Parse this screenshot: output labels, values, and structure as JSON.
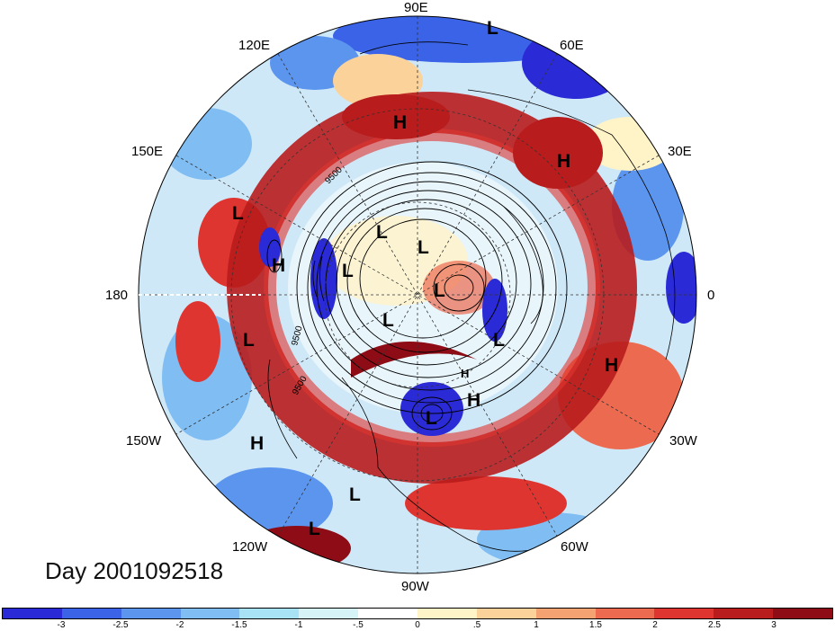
{
  "map": {
    "longitude_labels": [
      "90E",
      "60E",
      "30E",
      "0",
      "30W",
      "60W",
      "90W",
      "120W",
      "150W",
      "180",
      "150E",
      "120E"
    ],
    "day_label": "Day 2001092518",
    "pressure_centers": [
      "L",
      "L",
      "L",
      "L",
      "L",
      "L",
      "L",
      "L",
      "L",
      "L",
      "L",
      "L",
      "H",
      "H",
      "H",
      "H",
      "H",
      "H",
      "H"
    ],
    "contour_labels": [
      "9500",
      "9500",
      "9500"
    ]
  },
  "colorbar": {
    "ticks": [
      "-3",
      "-2.5",
      "-2",
      "-1.5",
      "-1",
      "-.5",
      "0",
      ".5",
      "1",
      "1.5",
      "2",
      "2.5",
      "3"
    ],
    "colors": [
      "#2a2ad6",
      "#3a63e8",
      "#5b95ee",
      "#7fbdf2",
      "#a7e2f5",
      "#d6f4f8",
      "#ffffff",
      "#fff3c8",
      "#fbd39a",
      "#f4a271",
      "#ec6a4f",
      "#df3530",
      "#b81c1c",
      "#8e0c16"
    ]
  }
}
